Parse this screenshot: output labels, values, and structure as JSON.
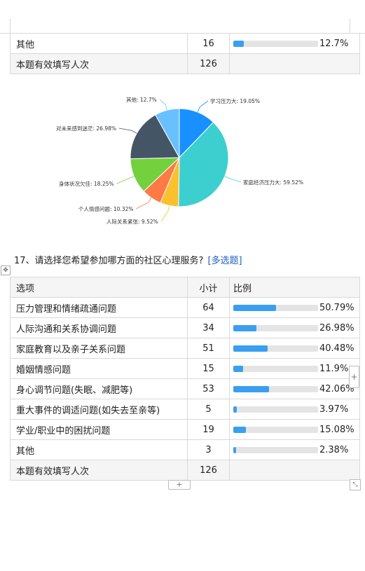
{
  "top_table": {
    "rows": [
      {
        "option": "其他",
        "count": "16",
        "percent": "12.7%",
        "fraction": 0.127
      }
    ],
    "footer": {
      "label": "本题有效填写人次",
      "count": "126"
    }
  },
  "pie_chart": {
    "chart_data": {
      "type": "pie",
      "slices": [
        {
          "label": "学习压力大: 19.05%",
          "value": 19.05,
          "color": "#1890ff"
        },
        {
          "label": "家庭经济压力大: 59.52%",
          "value": 59.52,
          "color": "#3ccfcf"
        },
        {
          "label": "人际关系紧张: 9.52%",
          "value": 9.52,
          "color": "#fbc02d"
        },
        {
          "label": "个人情感问题: 10.32%",
          "value": 10.32,
          "color": "#ff7a45"
        },
        {
          "label": "身体状况欠佳: 18.25%",
          "value": 18.25,
          "color": "#73d13d"
        },
        {
          "label": "对未来感到迷茫: 26.98%",
          "value": 26.98,
          "color": "#445566"
        },
        {
          "label": "其他: 12.7%",
          "value": 12.7,
          "color": "#69c0ff"
        }
      ]
    }
  },
  "question17": {
    "title": "17、请选择您希望参加哪方面的社区心理服务?",
    "tag": "[多选题]",
    "headers": {
      "option": "选项",
      "count": "小计",
      "percent": "比例"
    },
    "rows": [
      {
        "option": "压力管理和情绪疏通问题",
        "count": "64",
        "percent": "50.79%",
        "fraction": 0.5079
      },
      {
        "option": "人际沟通和关系协调问题",
        "count": "34",
        "percent": "26.98%",
        "fraction": 0.2698
      },
      {
        "option": "家庭教育以及亲子关系问题",
        "count": "51",
        "percent": "40.48%",
        "fraction": 0.4048
      },
      {
        "option": "婚姻情感问题",
        "count": "15",
        "percent": "11.9%",
        "fraction": 0.119
      },
      {
        "option": "身心调节问题(失眠、减肥等)",
        "count": "53",
        "percent": "42.06%",
        "fraction": 0.4206
      },
      {
        "option": "重大事件的调适问题(如失去至亲等)",
        "count": "5",
        "percent": "3.97%",
        "fraction": 0.0397
      },
      {
        "option": "学业/职业中的困扰问题",
        "count": "19",
        "percent": "15.08%",
        "fraction": 0.1508
      },
      {
        "option": "其他",
        "count": "3",
        "percent": "2.38%",
        "fraction": 0.0238
      }
    ],
    "footer": {
      "label": "本题有效填写人次",
      "count": "126"
    }
  },
  "controls": {
    "move_icon": "move-icon",
    "plus_symbol": "+",
    "resize_icon": "resize-icon"
  }
}
